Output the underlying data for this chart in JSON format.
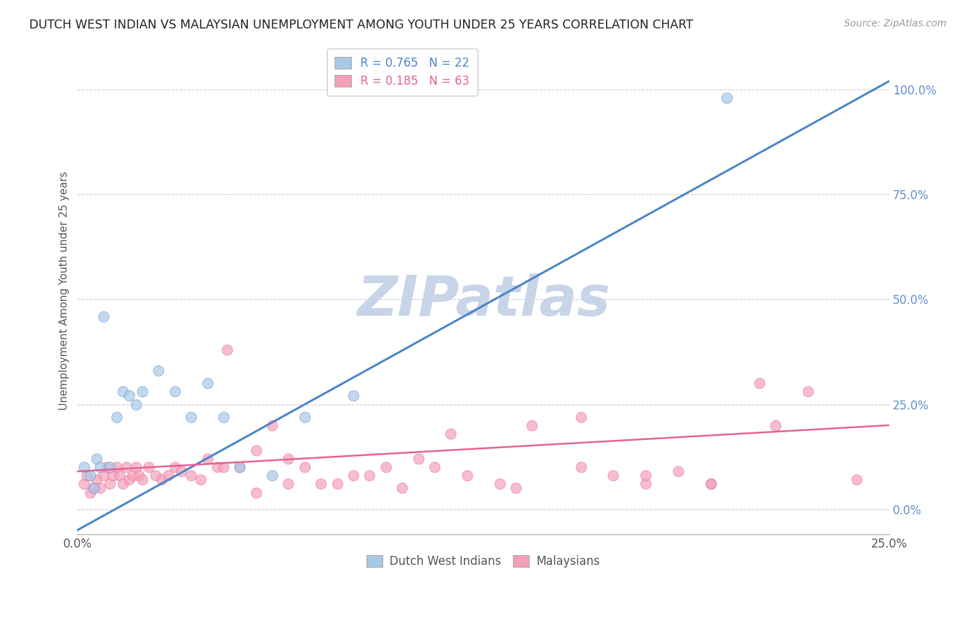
{
  "title": "DUTCH WEST INDIAN VS MALAYSIAN UNEMPLOYMENT AMONG YOUTH UNDER 25 YEARS CORRELATION CHART",
  "source": "Source: ZipAtlas.com",
  "ylabel": "Unemployment Among Youth under 25 years",
  "yticks": [
    0.0,
    0.25,
    0.5,
    0.75,
    1.0
  ],
  "ytick_labels": [
    "0.0%",
    "25.0%",
    "50.0%",
    "75.0%",
    "100.0%"
  ],
  "legend_blue_label": "R = 0.765   N = 22",
  "legend_pink_label": "R = 0.185   N = 63",
  "blue_color": "#a8c8e8",
  "pink_color": "#f4a0b8",
  "blue_line_color": "#4a86c8",
  "pink_line_color": "#e86090",
  "ytick_color": "#6090d0",
  "watermark_text": "ZIPatlas",
  "watermark_color": "#c8d4e8",
  "background_color": "#ffffff",
  "xmin": 0.0,
  "xmax": 0.25,
  "ymin": -0.06,
  "ymax": 1.1,
  "blue_line_y0": -0.05,
  "blue_line_y1": 1.02,
  "pink_line_y0": 0.09,
  "pink_line_y1": 0.2,
  "blue_x": [
    0.002,
    0.004,
    0.005,
    0.006,
    0.007,
    0.008,
    0.01,
    0.012,
    0.014,
    0.016,
    0.018,
    0.02,
    0.025,
    0.03,
    0.035,
    0.04,
    0.045,
    0.05,
    0.06,
    0.07,
    0.085,
    0.2
  ],
  "blue_y": [
    0.1,
    0.08,
    0.05,
    0.12,
    0.1,
    0.46,
    0.1,
    0.22,
    0.28,
    0.27,
    0.25,
    0.28,
    0.33,
    0.28,
    0.22,
    0.3,
    0.22,
    0.1,
    0.08,
    0.22,
    0.27,
    0.98
  ],
  "pink_x": [
    0.002,
    0.003,
    0.004,
    0.005,
    0.006,
    0.007,
    0.008,
    0.009,
    0.01,
    0.011,
    0.012,
    0.013,
    0.014,
    0.015,
    0.016,
    0.017,
    0.018,
    0.019,
    0.02,
    0.022,
    0.024,
    0.026,
    0.028,
    0.03,
    0.032,
    0.035,
    0.038,
    0.04,
    0.043,
    0.046,
    0.05,
    0.055,
    0.06,
    0.065,
    0.07,
    0.08,
    0.09,
    0.1,
    0.11,
    0.12,
    0.13,
    0.14,
    0.155,
    0.165,
    0.175,
    0.185,
    0.195,
    0.21,
    0.225,
    0.24,
    0.055,
    0.075,
    0.095,
    0.115,
    0.135,
    0.155,
    0.175,
    0.195,
    0.215,
    0.045,
    0.065,
    0.085,
    0.105
  ],
  "pink_y": [
    0.06,
    0.08,
    0.04,
    0.05,
    0.07,
    0.05,
    0.08,
    0.1,
    0.06,
    0.08,
    0.1,
    0.08,
    0.06,
    0.1,
    0.07,
    0.08,
    0.1,
    0.08,
    0.07,
    0.1,
    0.08,
    0.07,
    0.08,
    0.1,
    0.09,
    0.08,
    0.07,
    0.12,
    0.1,
    0.38,
    0.1,
    0.14,
    0.2,
    0.12,
    0.1,
    0.06,
    0.08,
    0.05,
    0.1,
    0.08,
    0.06,
    0.2,
    0.1,
    0.08,
    0.06,
    0.09,
    0.06,
    0.3,
    0.28,
    0.07,
    0.04,
    0.06,
    0.1,
    0.18,
    0.05,
    0.22,
    0.08,
    0.06,
    0.2,
    0.1,
    0.06,
    0.08,
    0.12
  ]
}
